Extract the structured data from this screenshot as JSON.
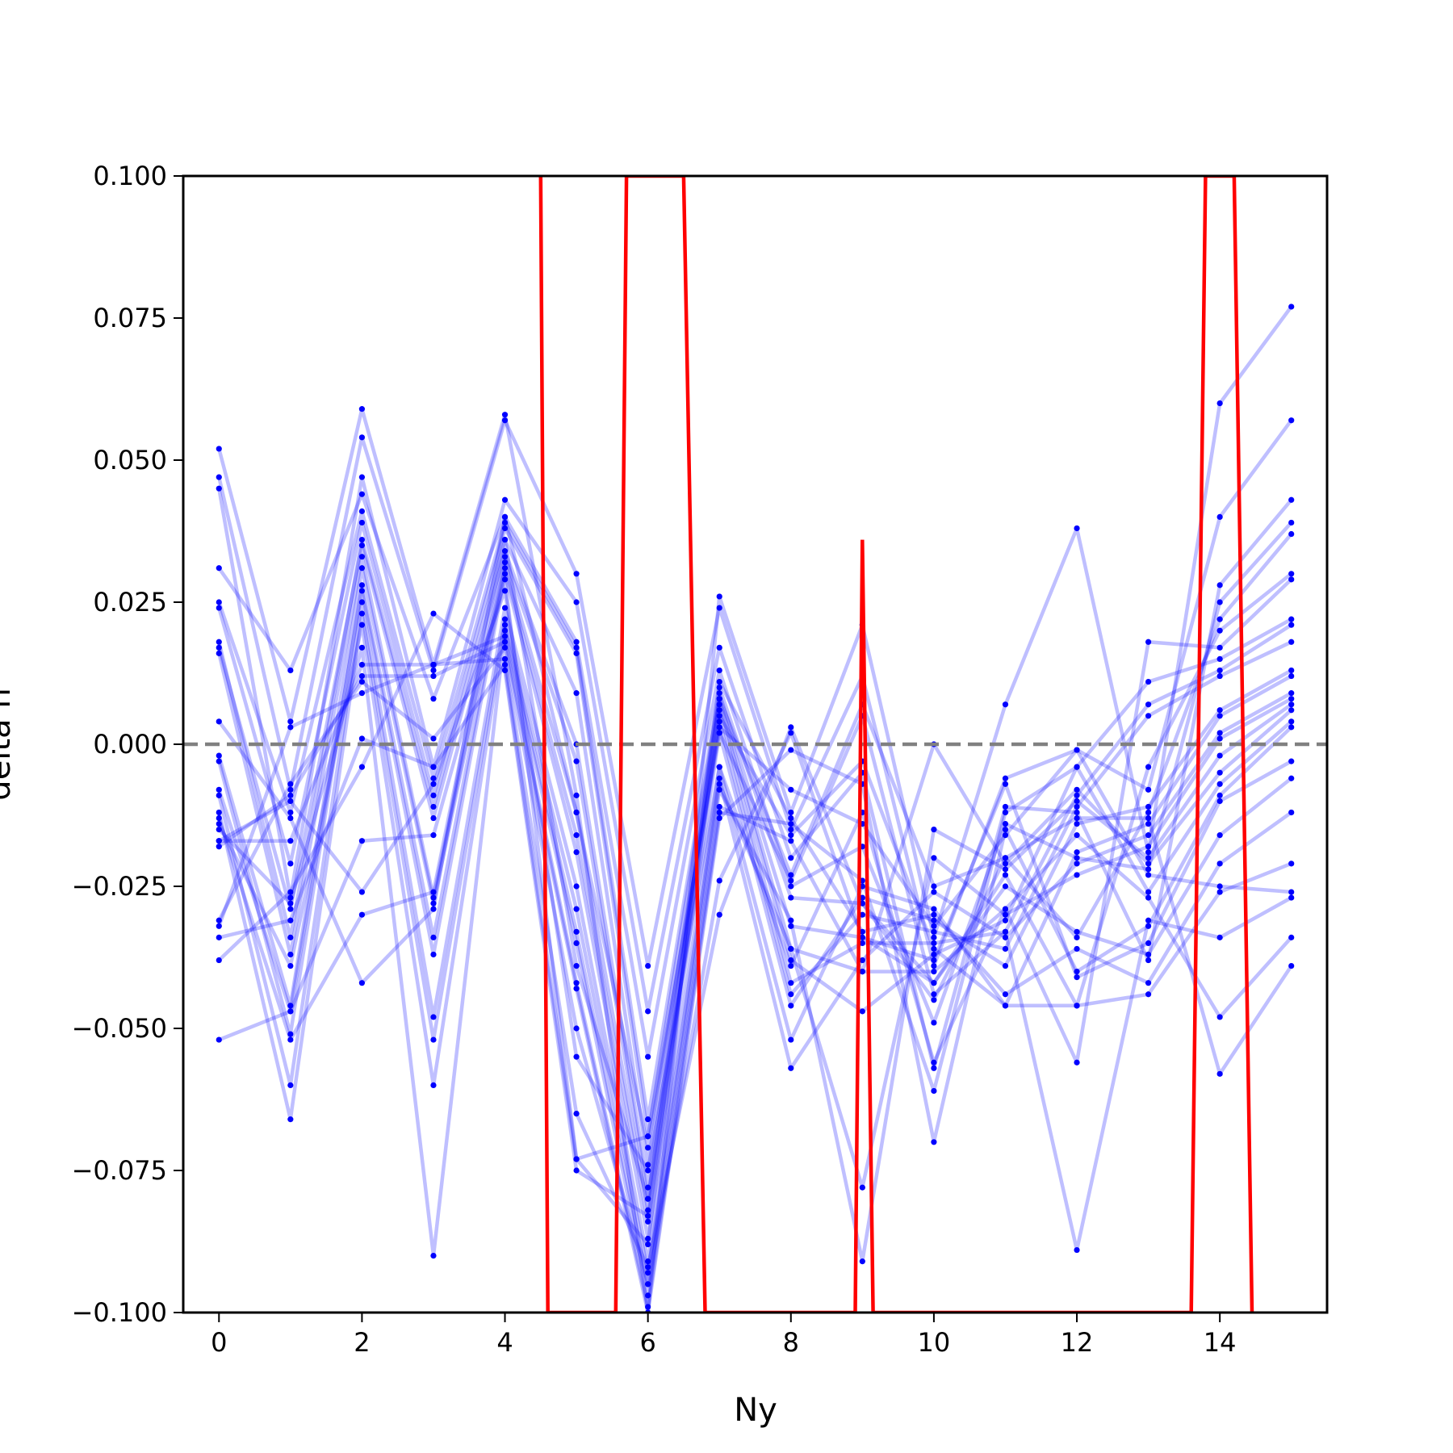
{
  "chart_data": {
    "type": "line",
    "xlabel": "Ny",
    "ylabel": "delta n",
    "xlim": [
      -0.5,
      15.5
    ],
    "ylim": [
      -0.1,
      0.1
    ],
    "xticks": [
      0,
      2,
      4,
      6,
      8,
      10,
      12,
      14
    ],
    "xtick_labels": [
      "0",
      "2",
      "4",
      "6",
      "8",
      "10",
      "12",
      "14"
    ],
    "yticks": [
      -0.1,
      -0.075,
      -0.05,
      -0.025,
      0.0,
      0.025,
      0.05,
      0.075,
      0.1
    ],
    "ytick_labels": [
      "−0.100",
      "−0.075",
      "−0.050",
      "−0.025",
      "0.000",
      "0.025",
      "0.050",
      "0.075",
      "0.100"
    ],
    "reference_line": {
      "y": 0.0,
      "style": "dashed",
      "color": "#808080"
    },
    "x": [
      0,
      1,
      2,
      3,
      4,
      5,
      6,
      7,
      8,
      9,
      10,
      11,
      12,
      13,
      14,
      15
    ],
    "series_color": "#0000ff",
    "series_alpha": 0.25,
    "series": [
      {
        "values": [
          0.052,
          0.004,
          0.059,
          0.014,
          0.058,
          -0.009,
          -0.1,
          0.026,
          -0.012,
          0.021,
          -0.034,
          0.007,
          0.038,
          -0.019,
          0.06,
          0.077
        ]
      },
      {
        "values": [
          0.047,
          -0.008,
          0.054,
          0.013,
          0.057,
          0.03,
          -0.039,
          0.024,
          -0.015,
          0.012,
          -0.039,
          -0.006,
          -0.001,
          -0.008,
          0.04,
          0.057
        ]
      },
      {
        "values": [
          0.045,
          -0.027,
          0.047,
          -0.004,
          0.043,
          0.025,
          -0.047,
          0.017,
          -0.02,
          -0.005,
          -0.057,
          -0.011,
          -0.012,
          -0.038,
          0.028,
          0.043
        ]
      },
      {
        "values": [
          0.031,
          0.013,
          0.044,
          0.008,
          0.04,
          0.018,
          -0.055,
          0.013,
          -0.025,
          -0.018,
          -0.049,
          -0.014,
          -0.02,
          -0.022,
          0.025,
          0.039
        ]
      },
      {
        "values": [
          0.025,
          -0.012,
          0.041,
          -0.006,
          0.039,
          0.017,
          -0.066,
          0.01,
          -0.027,
          -0.028,
          -0.045,
          -0.02,
          -0.034,
          -0.012,
          0.022,
          0.037
        ]
      },
      {
        "values": [
          0.024,
          -0.021,
          0.039,
          -0.009,
          0.038,
          0.016,
          -0.069,
          0.009,
          -0.032,
          -0.034,
          -0.042,
          -0.023,
          -0.046,
          -0.004,
          0.02,
          0.03
        ]
      },
      {
        "values": [
          0.018,
          -0.034,
          0.036,
          -0.011,
          0.036,
          0.009,
          -0.074,
          0.008,
          -0.036,
          -0.04,
          -0.04,
          -0.029,
          -0.056,
          0.018,
          0.017,
          0.029
        ]
      },
      {
        "values": [
          0.017,
          -0.029,
          0.035,
          -0.013,
          0.034,
          0.0,
          -0.078,
          0.007,
          -0.038,
          -0.047,
          -0.037,
          -0.031,
          -0.004,
          0.011,
          0.015,
          0.022
        ]
      },
      {
        "values": [
          0.016,
          -0.037,
          0.033,
          -0.027,
          0.033,
          -0.003,
          -0.08,
          0.006,
          -0.042,
          -0.035,
          -0.035,
          -0.033,
          -0.009,
          0.007,
          0.013,
          0.021
        ]
      },
      {
        "values": [
          -0.002,
          -0.046,
          0.031,
          -0.028,
          0.032,
          -0.012,
          -0.082,
          0.004,
          -0.044,
          -0.03,
          -0.033,
          -0.036,
          -0.011,
          0.005,
          0.012,
          0.018
        ]
      },
      {
        "values": [
          -0.003,
          -0.051,
          0.028,
          -0.034,
          0.031,
          -0.016,
          -0.084,
          0.002,
          -0.046,
          -0.027,
          -0.031,
          -0.039,
          -0.014,
          -0.011,
          0.006,
          0.013
        ]
      },
      {
        "values": [
          -0.008,
          -0.047,
          0.027,
          -0.037,
          0.03,
          -0.019,
          -0.087,
          -0.004,
          -0.052,
          -0.025,
          -0.029,
          -0.046,
          -0.019,
          -0.014,
          0.005,
          0.012
        ]
      },
      {
        "values": [
          -0.009,
          -0.06,
          0.025,
          -0.048,
          0.024,
          -0.025,
          -0.091,
          -0.006,
          -0.057,
          -0.038,
          -0.026,
          -0.034,
          -0.021,
          -0.016,
          0.002,
          0.009
        ]
      },
      {
        "values": [
          -0.012,
          -0.066,
          0.023,
          -0.052,
          0.022,
          -0.029,
          -0.093,
          -0.007,
          -0.036,
          -0.078,
          -0.02,
          -0.03,
          -0.023,
          -0.018,
          0.001,
          0.008
        ]
      },
      {
        "values": [
          -0.014,
          -0.039,
          0.021,
          -0.06,
          0.021,
          -0.033,
          -0.095,
          -0.008,
          -0.031,
          -0.091,
          -0.015,
          -0.022,
          -0.01,
          -0.02,
          -0.002,
          0.007
        ]
      },
      {
        "values": [
          -0.015,
          -0.028,
          0.017,
          -0.09,
          0.02,
          -0.035,
          -0.097,
          -0.011,
          -0.017,
          -0.04,
          -0.0,
          -0.021,
          -0.008,
          -0.021,
          -0.005,
          0.006
        ]
      },
      {
        "values": [
          -0.017,
          -0.017,
          0.014,
          0.014,
          0.019,
          -0.042,
          -0.099,
          -0.012,
          -0.014,
          -0.024,
          -0.061,
          -0.012,
          -0.004,
          -0.026,
          -0.007,
          0.004
        ]
      },
      {
        "values": [
          -0.018,
          -0.009,
          0.012,
          0.012,
          0.018,
          -0.043,
          -0.1,
          -0.013,
          -0.001,
          -0.007,
          -0.07,
          -0.015,
          -0.04,
          -0.032,
          -0.009,
          0.003
        ]
      },
      {
        "values": [
          -0.031,
          -0.007,
          0.011,
          0.001,
          0.017,
          -0.05,
          -0.095,
          -0.024,
          0.002,
          -0.034,
          -0.038,
          -0.007,
          -0.041,
          -0.035,
          -0.01,
          -0.003
        ]
      },
      {
        "values": [
          -0.032,
          0.003,
          0.009,
          0.014,
          0.015,
          -0.065,
          -0.092,
          -0.03,
          0.003,
          -0.028,
          -0.042,
          -0.025,
          -0.033,
          -0.037,
          -0.016,
          -0.006
        ]
      },
      {
        "values": [
          -0.034,
          -0.031,
          0.001,
          -0.004,
          0.014,
          -0.073,
          -0.088,
          0.011,
          -0.013,
          -0.033,
          -0.03,
          -0.044,
          -0.036,
          -0.042,
          -0.021,
          -0.012
        ]
      },
      {
        "values": [
          -0.038,
          -0.026,
          -0.004,
          0.023,
          0.013,
          -0.075,
          -0.083,
          0.005,
          -0.016,
          -0.003,
          -0.036,
          -0.046,
          -0.046,
          -0.044,
          -0.026,
          -0.021
        ]
      },
      {
        "values": [
          -0.052,
          -0.047,
          -0.017,
          -0.016,
          0.029,
          -0.073,
          -0.069,
          0.002,
          -0.024,
          0.005,
          -0.044,
          -0.033,
          -0.089,
          -0.031,
          -0.034,
          -0.027
        ]
      },
      {
        "values": [
          -0.017,
          -0.01,
          -0.026,
          -0.007,
          0.027,
          -0.055,
          -0.075,
          -0.004,
          -0.039,
          -0.012,
          -0.056,
          -0.029,
          -0.016,
          -0.027,
          -0.048,
          -0.034
        ]
      },
      {
        "values": [
          -0.013,
          -0.052,
          -0.03,
          -0.026,
          0.036,
          -0.039,
          -0.08,
          0.008,
          -0.023,
          0.007,
          -0.025,
          -0.02,
          -0.013,
          -0.013,
          -0.058,
          -0.039
        ]
      },
      {
        "values": [
          0.004,
          -0.013,
          -0.042,
          -0.029,
          0.04,
          -0.012,
          -0.071,
          0.003,
          -0.008,
          -0.014,
          -0.032,
          -0.016,
          -0.001,
          -0.023,
          -0.025,
          -0.026
        ]
      }
    ],
    "red_series": {
      "color": "#ff0000",
      "points": [
        [
          4.5,
          0.1
        ],
        [
          4.6,
          -0.1
        ],
        [
          5.55,
          -0.1
        ],
        [
          5.7,
          0.1
        ],
        [
          6.5,
          0.1
        ],
        [
          6.8,
          -0.1
        ],
        [
          8.9,
          -0.1
        ],
        [
          9.0,
          0.036
        ],
        [
          9.15,
          -0.1
        ],
        [
          13.6,
          -0.1
        ],
        [
          13.8,
          0.1
        ],
        [
          14.2,
          0.1
        ],
        [
          14.45,
          -0.1
        ]
      ]
    }
  }
}
